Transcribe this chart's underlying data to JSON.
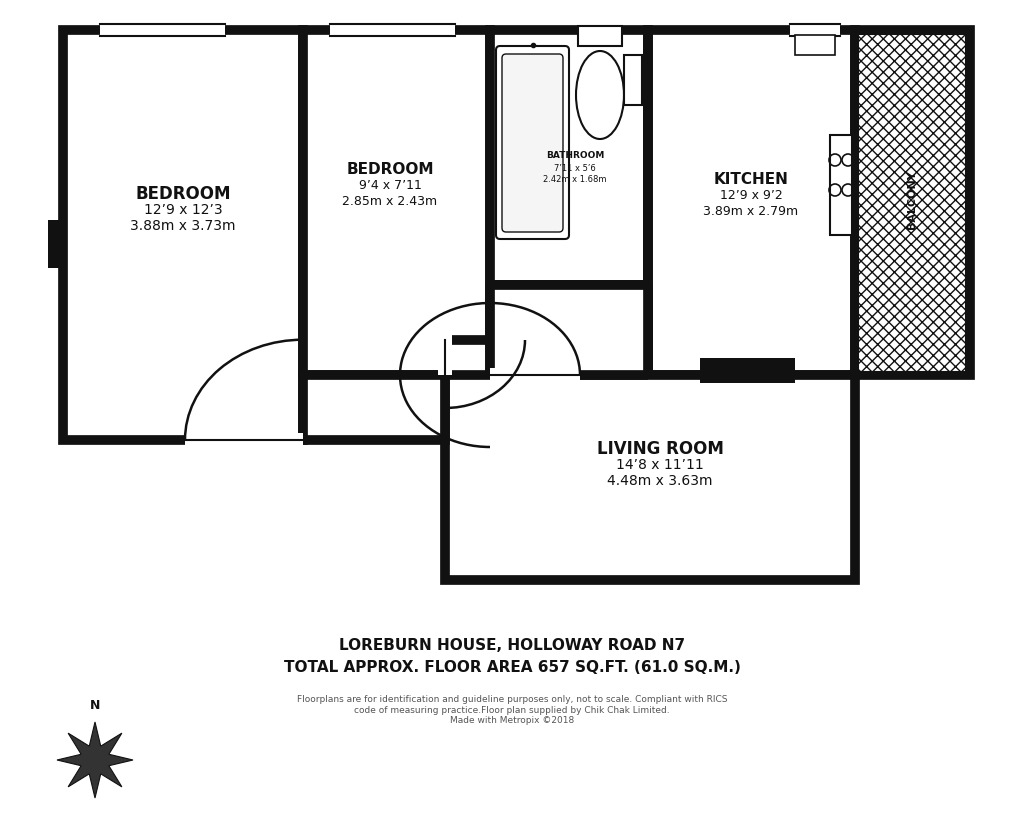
{
  "bg_color": "#ffffff",
  "wall_color": "#111111",
  "title_line1": "LOREBURN HOUSE, HOLLOWAY ROAD N7",
  "title_line2": "TOTAL APPROX. FLOOR AREA 657 SQ.FT. (61.0 SQ.M.)",
  "disclaimer": "Floorplans are for identification and guideline purposes only, not to scale. Compliant with RICS\ncode of measuring practice.Floor plan supplied by Chik Chak Limited.\nMade with Metropix ©2018",
  "room_bed1_name": "BEDROOM",
  "room_bed1_dim1": "12’9 x 12’3",
  "room_bed1_dim2": "3.88m x 3.73m",
  "room_bed2_name": "BEDROOM",
  "room_bed2_dim1": "9’4 x 7’11",
  "room_bed2_dim2": "2.85m x 2.43m",
  "room_bath_name": "BATHROOM",
  "room_bath_dim1": "7’11 x 5’6",
  "room_bath_dim2": "2.42m x 1.68m",
  "room_kit_name": "KITCHEN",
  "room_kit_dim1": "12’9 x 9’2",
  "room_kit_dim2": "3.89m x 2.79m",
  "room_bal_name": "BALCONY",
  "room_liv_name": "LIVING ROOM",
  "room_liv_dim1": "14’8 x 11’11",
  "room_liv_dim2": "4.48m x 3.63m"
}
